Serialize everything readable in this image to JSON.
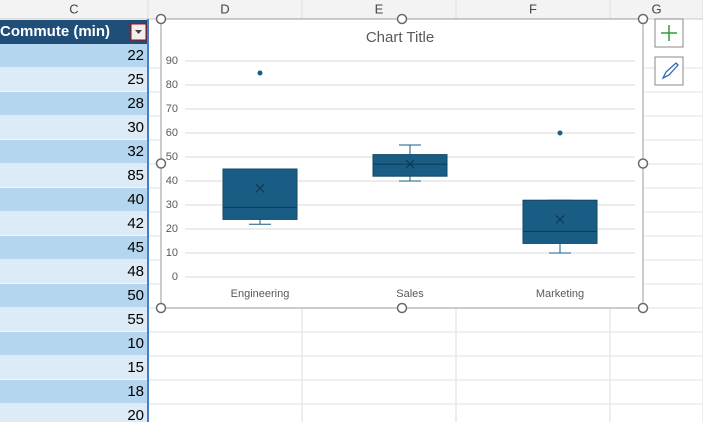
{
  "spreadsheet": {
    "columns": [
      "C",
      "D",
      "E",
      "F",
      "G"
    ],
    "header": "Commute (min)",
    "values": [
      22,
      25,
      28,
      30,
      32,
      85,
      40,
      42,
      45,
      48,
      50,
      55,
      10,
      15,
      18,
      20
    ]
  },
  "chart_data": {
    "type": "box",
    "title": "Chart Title",
    "categories": [
      "Engineering",
      "Sales",
      "Marketing"
    ],
    "color": "#195d85",
    "boxes": [
      {
        "min": 22,
        "q1": 24,
        "median": 29,
        "q3": 45,
        "max": 45,
        "mean": 37,
        "outliers": [
          85
        ]
      },
      {
        "min": 40,
        "q1": 42,
        "median": 47,
        "q3": 51,
        "max": 55,
        "mean": 47,
        "outliers": []
      },
      {
        "min": 10,
        "q1": 14,
        "median": 19,
        "q3": 32,
        "max": 32,
        "mean": 24,
        "outliers": [
          60
        ]
      }
    ],
    "ylim": [
      0,
      90
    ],
    "yticks": [
      0,
      10,
      20,
      30,
      40,
      50,
      60,
      70,
      80,
      90
    ],
    "grid": true
  }
}
